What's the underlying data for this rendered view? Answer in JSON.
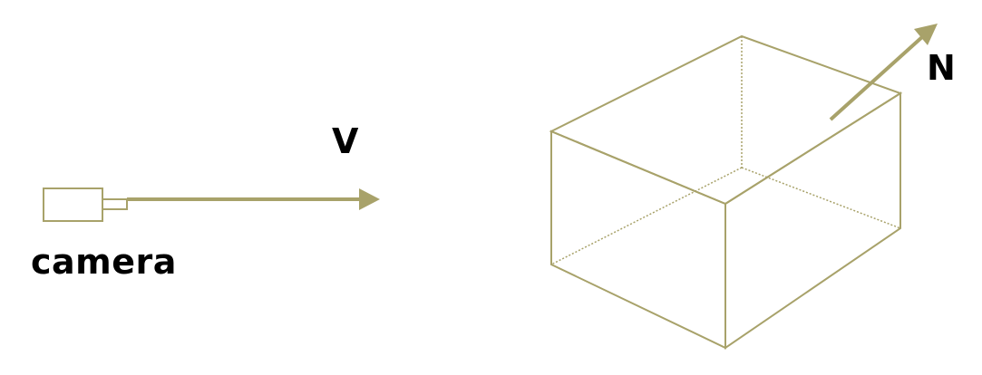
{
  "labels": {
    "view_vector": "V",
    "normal_vector": "N",
    "camera": "camera"
  },
  "colors": {
    "stroke": "#a8a26a",
    "text": "#000000",
    "background": "#ffffff"
  }
}
